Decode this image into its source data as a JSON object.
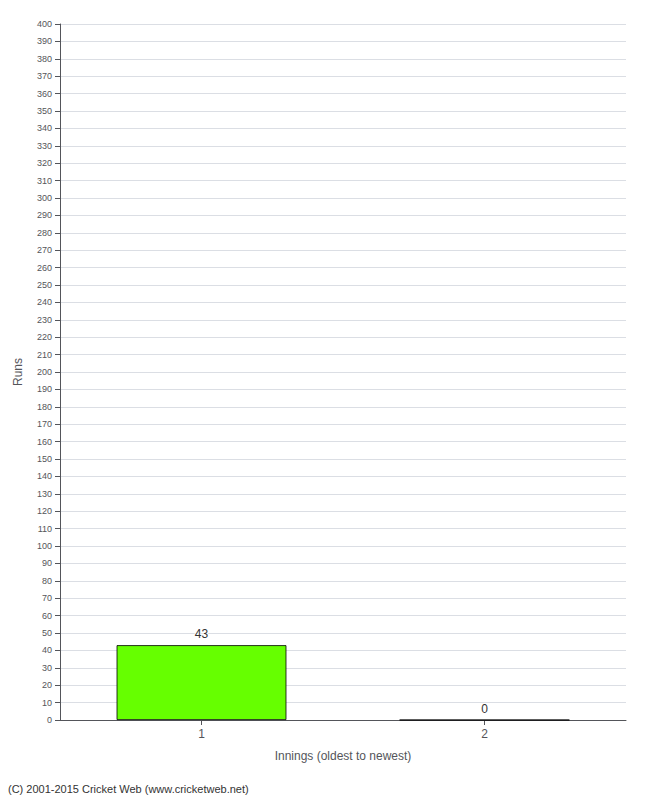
{
  "chart_data": {
    "type": "bar",
    "xlabel": "Innings (oldest to newest)",
    "ylabel": "Runs",
    "categories": [
      "1",
      "2"
    ],
    "values": [
      43,
      0
    ],
    "color": "#66ff00",
    "ylim": [
      0,
      400
    ],
    "yticks": [
      0,
      10,
      20,
      30,
      40,
      50,
      60,
      70,
      80,
      90,
      100,
      110,
      120,
      130,
      140,
      150,
      160,
      170,
      180,
      190,
      200,
      210,
      220,
      230,
      240,
      250,
      260,
      270,
      280,
      290,
      300,
      310,
      320,
      330,
      340,
      350,
      360,
      370,
      380,
      390,
      400
    ],
    "grid": true,
    "data_labels": true,
    "annotations": [
      "(C) 2001-2015 Cricket Web (www.cricketweb.net)"
    ]
  }
}
